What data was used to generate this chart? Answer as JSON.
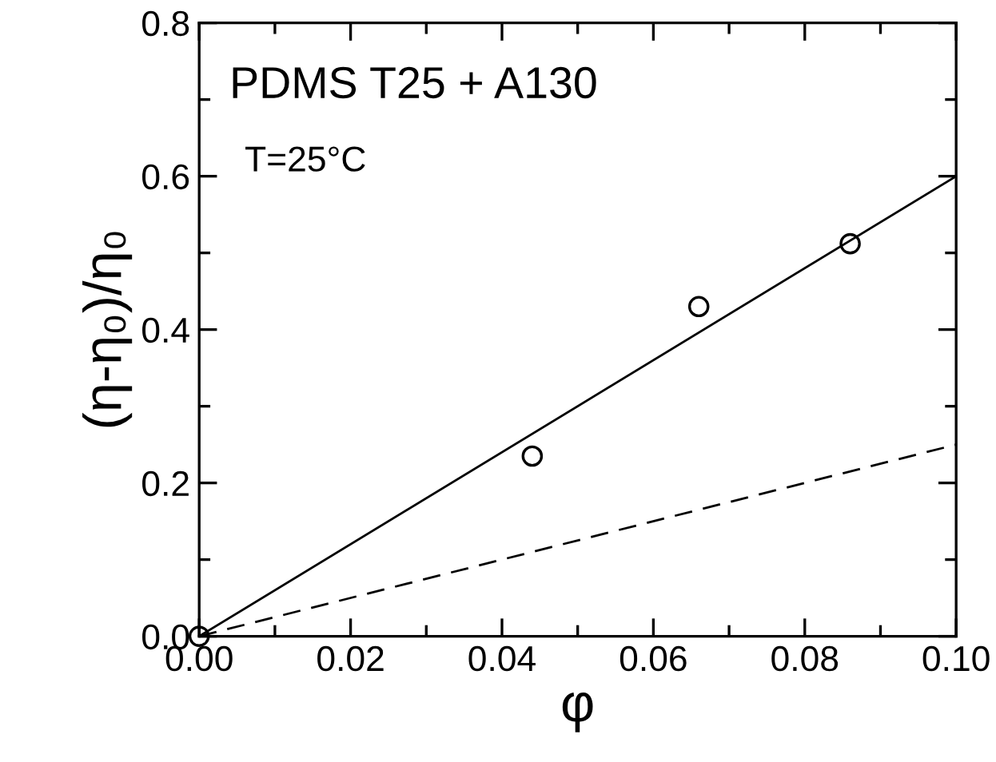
{
  "chart_data": {
    "type": "scatter",
    "xlabel": "φ",
    "ylabel": "(η-η₀)/η₀",
    "annotations": [
      "PDMS T25 + A130",
      "T=25°C"
    ],
    "series": [
      {
        "type": "scatter",
        "color": "#000000",
        "marker": "circle",
        "x": [
          0.0,
          0.044,
          0.066,
          0.086
        ],
        "values": [
          0.0,
          0.235,
          0.43,
          0.512
        ]
      },
      {
        "type": "line",
        "color": "#000000",
        "line_style": "solid",
        "marker": "none",
        "x": [
          0.0,
          0.1
        ],
        "values": [
          0.0,
          0.6
        ]
      },
      {
        "type": "line",
        "color": "#000000",
        "line_style": "dashed",
        "marker": "none",
        "x": [
          0.0,
          0.1
        ],
        "values": [
          0.0,
          0.25
        ]
      }
    ],
    "xlim": [
      0.0,
      0.1
    ],
    "xticks": [
      {
        "value": 0,
        "label": "0.00"
      },
      0.02,
      0.04,
      0.06,
      0.08,
      {
        "value": 0.1,
        "label": "0.10"
      }
    ],
    "ylim": [
      0.0,
      0.8
    ],
    "yticks": [
      {
        "value": 0,
        "label": "0.0"
      },
      0.2,
      0.4,
      0.6,
      0.8
    ],
    "grid": false,
    "legend": false
  }
}
